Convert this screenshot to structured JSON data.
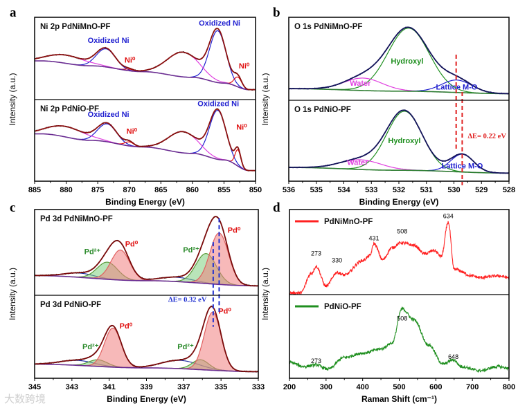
{
  "watermark": "大数跨境",
  "chart_data": [
    {
      "type": "line",
      "panel_label": "a",
      "xlabel": "Binding Energy (eV)",
      "ylabel": "Intensity (a.u.)",
      "xlim": [
        885,
        850
      ],
      "xticks": [
        885,
        880,
        875,
        870,
        865,
        860,
        855,
        850
      ],
      "minor_step": 2.5,
      "envelope_color": "#8b1010",
      "raw_color": "#111111",
      "baseline_color": "#6a2c91",
      "dashed_lines": [],
      "subplots": [
        {
          "title": "Ni 2p PdNiMnO-PF",
          "baseline": [
            [
              884,
              0.47
            ],
            [
              876,
              0.41
            ],
            [
              868,
              0.34
            ],
            [
              860,
              0.27
            ],
            [
              855,
              0.2
            ],
            [
              851,
              0.12
            ]
          ],
          "components": [
            {
              "color": "#2020d0",
              "peaks": [
                [
                  873.7,
                  0.22,
                  1.5
                ],
                [
                  856,
                  0.63,
                  1.3
                ]
              ]
            },
            {
              "color": "#e040e0",
              "peaks": [
                [
                  880,
                  0.1,
                  3
                ],
                [
                  861.5,
                  0.3,
                  2.5
                ]
              ]
            },
            {
              "color": "#e01010",
              "peaks": [
                [
                  870,
                  0.02,
                  0.7
                ],
                [
                  852.8,
                  0.12,
                  0.6
                ]
              ]
            }
          ],
          "annotations": [
            {
              "text": "Oxidized Ni",
              "x": 873.3,
              "y": 0.69,
              "color": "#2020d0"
            },
            {
              "text": "Oxidized Ni",
              "x": 855.7,
              "y": 0.9,
              "color": "#2020d0"
            },
            {
              "text": "Ni⁰",
              "x": 869.9,
              "y": 0.45,
              "color": "#e01010"
            },
            {
              "text": "Ni⁰",
              "x": 851.8,
              "y": 0.38,
              "color": "#e01010"
            }
          ]
        },
        {
          "title": "Ni 2p PdNiO-PF",
          "baseline": [
            [
              884,
              0.58
            ],
            [
              876,
              0.5
            ],
            [
              868,
              0.42
            ],
            [
              860,
              0.34
            ],
            [
              855,
              0.26
            ],
            [
              851,
              0.13
            ]
          ],
          "components": [
            {
              "color": "#2020d0",
              "peaks": [
                [
                  873.5,
                  0.22,
                  1.5
                ],
                [
                  856,
                  0.6,
                  1.3
                ]
              ]
            },
            {
              "color": "#e040e0",
              "peaks": [
                [
                  880,
                  0.13,
                  3
                ],
                [
                  861.5,
                  0.26,
                  2.3
                ]
              ]
            },
            {
              "color": "#e01010",
              "peaks": [
                [
                  870,
                  0.05,
                  0.7
                ],
                [
                  852.8,
                  0.2,
                  0.45
                ]
              ]
            }
          ],
          "annotations": [
            {
              "text": "Oxidized Ni",
              "x": 873.3,
              "y": 0.79,
              "color": "#2020d0"
            },
            {
              "text": "Oxidized Ni",
              "x": 855.9,
              "y": 0.92,
              "color": "#2020d0"
            },
            {
              "text": "Ni⁰",
              "x": 869.6,
              "y": 0.58,
              "color": "#e01010"
            },
            {
              "text": "Ni⁰",
              "x": 852.2,
              "y": 0.63,
              "color": "#e01010"
            }
          ]
        }
      ]
    },
    {
      "type": "line",
      "panel_label": "b",
      "xlabel": "Binding Energy (eV)",
      "ylabel": "Intensity (a.u.)",
      "xlim": [
        536,
        528
      ],
      "xticks": [
        536,
        535,
        534,
        533,
        532,
        531,
        530,
        529,
        528
      ],
      "minor_step": 0.5,
      "envelope_color": "#14145a",
      "raw_color": "#1a1a70",
      "baseline_color": "#2e7d32",
      "dashed_lines": [
        {
          "x": 529.92,
          "color": "#e02020",
          "from": [
            0,
            0.55
          ],
          "to": [
            1,
            0.4
          ]
        },
        {
          "x": 529.7,
          "color": "#e02020",
          "from": [
            0,
            0.1
          ],
          "to": [
            1,
            -0.05
          ]
        }
      ],
      "subplots": [
        {
          "title": "O 1s PdNiMnO-PF",
          "baseline": [
            [
              536,
              0.14
            ],
            [
              532,
              0.11
            ],
            [
              528,
              0.08
            ]
          ],
          "components": [
            {
              "color": "#1f8f1f",
              "peaks": [
                [
                  531.65,
                  0.76,
                  0.75
                ]
              ]
            },
            {
              "color": "#e040e0",
              "peaks": [
                [
                  533.3,
                  0.15,
                  0.7
                ]
              ]
            },
            {
              "color": "#2020d0",
              "peaks": [
                [
                  529.9,
                  0.15,
                  0.55
                ]
              ]
            }
          ],
          "annotations": [
            {
              "text": "Hydroxyl",
              "x": 531.7,
              "y": 0.44,
              "color": "#1f8f1f"
            },
            {
              "text": "Water",
              "x": 533.4,
              "y": 0.175,
              "color": "#e040e0"
            },
            {
              "text": "Lattice M-O",
              "x": 529.9,
              "y": 0.13,
              "color": "#2020d0"
            }
          ]
        },
        {
          "title": "O 1s PdNiO-PF",
          "baseline": [
            [
              536,
              0.17
            ],
            [
              532,
              0.135
            ],
            [
              528,
              0.1
            ]
          ],
          "components": [
            {
              "color": "#1f8f1f",
              "peaks": [
                [
                  531.8,
                  0.73,
                  0.65
                ]
              ]
            },
            {
              "color": "#e040e0",
              "peaks": [
                [
                  533.4,
                  0.12,
                  0.75
                ]
              ]
            },
            {
              "color": "#2020d0",
              "peaks": [
                [
                  529.7,
                  0.22,
                  0.42
                ]
              ]
            }
          ],
          "annotations": [
            {
              "text": "Hydroxyl",
              "x": 531.8,
              "y": 0.47,
              "color": "#1f8f1f"
            },
            {
              "text": "Water",
              "x": 533.5,
              "y": 0.2,
              "color": "#e040e0"
            },
            {
              "text": "Lattice M-O",
              "x": 529.7,
              "y": 0.16,
              "color": "#2020d0"
            },
            {
              "text": "ΔE= 0.22 eV",
              "x": 528.8,
              "y": 0.53,
              "color": "#e02020",
              "serif": true
            }
          ]
        }
      ]
    },
    {
      "type": "line",
      "panel_label": "c",
      "xlabel": "Binding Energy (eV)",
      "ylabel": "Intensity (a.u.)",
      "xlim": [
        345,
        333
      ],
      "xticks": [
        345,
        343,
        341,
        339,
        337,
        335,
        333
      ],
      "minor_step": 1,
      "envelope_color": "#7a0a0a",
      "raw_color": "#111111",
      "baseline_color": "#6a2c91",
      "dashed_lines": [
        {
          "x": 335.1,
          "color": "#2030d0",
          "from": [
            0,
            0.9
          ],
          "to": [
            1,
            0.8
          ]
        },
        {
          "x": 335.42,
          "color": "#2030d0",
          "from": [
            0,
            0.62
          ],
          "to": [
            1,
            0.62
          ]
        }
      ],
      "subplots": [
        {
          "title": "Pd 3d PdNiMnO-PF",
          "baseline": [
            [
              345,
              0.23
            ],
            [
              339,
              0.17
            ],
            [
              333,
              0.11
            ]
          ],
          "components": [
            {
              "color": "#2030a0",
              "peaks": [
                [
                  342.6,
                  0.05,
                  0.8
                ],
                [
                  337.4,
                  0.05,
                  0.9
                ]
              ]
            },
            {
              "color": "#5a9a3a",
              "fill": "#7fcf7f",
              "peaks": [
                [
                  341.1,
                  0.2,
                  0.55
                ],
                [
                  335.8,
                  0.35,
                  0.55
                ]
              ]
            },
            {
              "color": "#e06060",
              "fill": "#f08080",
              "peaks": [
                [
                  340.4,
                  0.35,
                  0.5
                ],
                [
                  335.1,
                  0.6,
                  0.5
                ]
              ]
            }
          ],
          "annotations": [
            {
              "text": "Pd²⁺",
              "x": 341.9,
              "y": 0.48,
              "color": "#2a8a2a"
            },
            {
              "text": "Pd⁰",
              "x": 339.8,
              "y": 0.57,
              "color": "#e01010"
            },
            {
              "text": "Pd²⁺",
              "x": 336.6,
              "y": 0.5,
              "color": "#2a8a2a"
            },
            {
              "text": "Pd⁰",
              "x": 334.3,
              "y": 0.73,
              "color": "#e01010"
            }
          ]
        },
        {
          "title": "Pd 3d PdNiO-PF",
          "baseline": [
            [
              345,
              0.17
            ],
            [
              339,
              0.125
            ],
            [
              333,
              0.08
            ]
          ],
          "components": [
            {
              "color": "#2030a0",
              "peaks": [
                [
                  342.7,
                  0.06,
                  0.9
                ],
                [
                  337.2,
                  0.1,
                  1.0
                ]
              ]
            },
            {
              "color": "#5a9a3a",
              "fill": "#7fcf7f",
              "peaks": [
                [
                  341.6,
                  0.08,
                  0.5
                ],
                [
                  336.1,
                  0.12,
                  0.45
                ]
              ]
            },
            {
              "color": "#e06060",
              "fill": "#f08080",
              "peaks": [
                [
                  340.8,
                  0.47,
                  0.45
                ],
                [
                  335.45,
                  0.7,
                  0.45
                ]
              ]
            }
          ],
          "annotations": [
            {
              "text": "ΔE= 0.32 eV",
              "x": 336.8,
              "y": 0.92,
              "color": "#2030d0",
              "serif": true
            },
            {
              "text": "Pd⁰",
              "x": 340.1,
              "y": 0.6,
              "color": "#e01010"
            },
            {
              "text": "Pd⁰",
              "x": 334.8,
              "y": 0.78,
              "color": "#e01010"
            },
            {
              "text": "Pd²⁺",
              "x": 342.0,
              "y": 0.35,
              "color": "#2a8a2a"
            },
            {
              "text": "Pd²⁺",
              "x": 336.9,
              "y": 0.35,
              "color": "#2a8a2a"
            }
          ]
        }
      ]
    },
    {
      "type": "line",
      "panel_label": "d",
      "xlabel": "Raman Shift (cm⁻¹)",
      "ylabel": "Intensity (a.u.)",
      "xlim": [
        200,
        800
      ],
      "xticks": [
        200,
        300,
        400,
        500,
        600,
        700,
        800
      ],
      "minor_step": 50,
      "dashed_lines": [],
      "subplots": [
        {
          "legend": "PdNiMnO-PF",
          "color": "#ff2020",
          "points": [
            [
              200,
              0.02
            ],
            [
              230,
              0.02
            ],
            [
              260,
              0.25
            ],
            [
              273,
              0.33
            ],
            [
              300,
              0.1
            ],
            [
              330,
              0.26
            ],
            [
              350,
              0.23
            ],
            [
              400,
              0.4
            ],
            [
              420,
              0.46
            ],
            [
              431,
              0.6
            ],
            [
              455,
              0.41
            ],
            [
              480,
              0.55
            ],
            [
              505,
              0.61
            ],
            [
              540,
              0.58
            ],
            [
              570,
              0.48
            ],
            [
              595,
              0.52
            ],
            [
              615,
              0.45
            ],
            [
              634,
              0.85
            ],
            [
              650,
              0.3
            ],
            [
              700,
              0.22
            ],
            [
              720,
              0.2
            ],
            [
              770,
              0.22
            ],
            [
              800,
              0.2
            ]
          ],
          "annotations": [
            {
              "text": "273",
              "x": 273,
              "y": 0.46
            },
            {
              "text": "330",
              "x": 330,
              "y": 0.38
            },
            {
              "text": "431",
              "x": 431,
              "y": 0.64
            },
            {
              "text": "508",
              "x": 508,
              "y": 0.72
            },
            {
              "text": "634",
              "x": 634,
              "y": 0.9
            }
          ]
        },
        {
          "legend": "PdNiO-PF",
          "color": "#1f8f1f",
          "points": [
            [
              200,
              0.19
            ],
            [
              240,
              0.14
            ],
            [
              273,
              0.16
            ],
            [
              305,
              0.11
            ],
            [
              350,
              0.25
            ],
            [
              400,
              0.3
            ],
            [
              450,
              0.35
            ],
            [
              480,
              0.42
            ],
            [
              508,
              0.83
            ],
            [
              540,
              0.7
            ],
            [
              580,
              0.4
            ],
            [
              620,
              0.17
            ],
            [
              648,
              0.22
            ],
            [
              670,
              0.14
            ],
            [
              720,
              0.09
            ],
            [
              770,
              0.14
            ],
            [
              800,
              0.12
            ]
          ],
          "annotations": [
            {
              "text": "508",
              "x": 508,
              "y": 0.69
            },
            {
              "text": "273",
              "x": 273,
              "y": 0.18
            },
            {
              "text": "648",
              "x": 648,
              "y": 0.23
            }
          ]
        }
      ]
    }
  ]
}
